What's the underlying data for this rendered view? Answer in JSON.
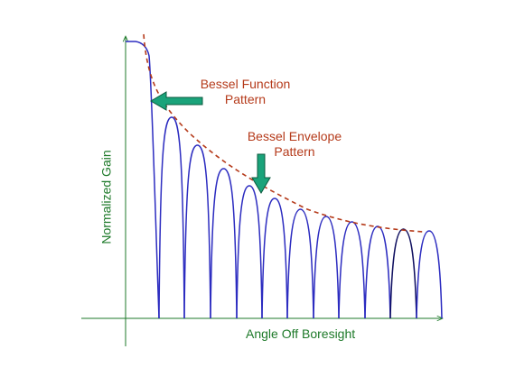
{
  "labels": {
    "bessel_function": [
      "Bessel Function",
      "Pattern"
    ],
    "bessel_envelope": [
      "Bessel Envelope",
      "Pattern"
    ],
    "x_axis": "Angle Off Boresight",
    "y_axis": "Normalized Gain"
  },
  "colors": {
    "axis": "#1e7a2a",
    "curve": "#2c2cc0",
    "highlight_lobe": "#101060",
    "envelope": "#b53a1a",
    "arrow_fill": "#1aa37a",
    "arrow_stroke": "#0b5a3e",
    "annotation_text": "#b53a1a",
    "axis_text": "#1e7a2a"
  },
  "pattern": {
    "side_lobe_count": 12,
    "highlighted_lobe": 10
  }
}
